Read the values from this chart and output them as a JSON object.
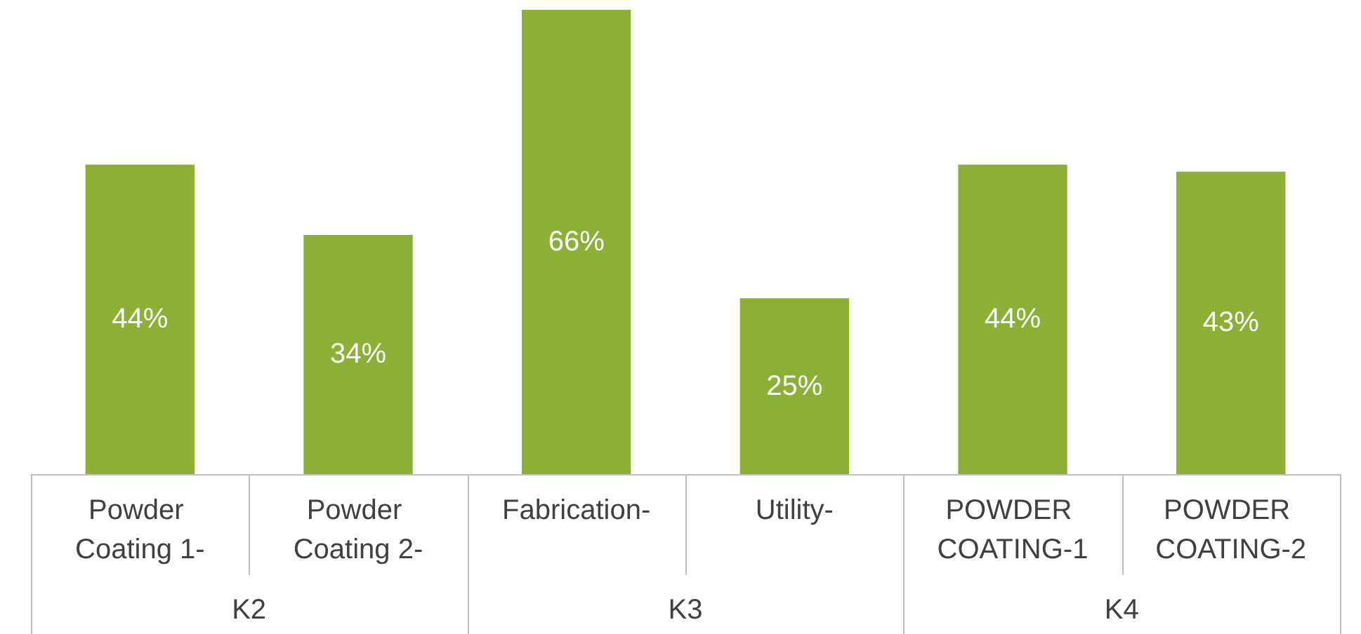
{
  "chart_data": {
    "type": "bar",
    "categories": [
      "Powder Coating 1-",
      "Powder Coating 2-",
      "Fabrication-",
      "Utility-",
      "POWDER COATING-1",
      "POWDER COATING-2"
    ],
    "values": [
      44,
      34,
      66,
      25,
      44,
      43
    ],
    "value_labels": [
      "44%",
      "34%",
      "66%",
      "25%",
      "44%",
      "43%"
    ],
    "color": "#8cb035",
    "annotations": [
      "K2",
      "K3",
      "K4"
    ]
  }
}
